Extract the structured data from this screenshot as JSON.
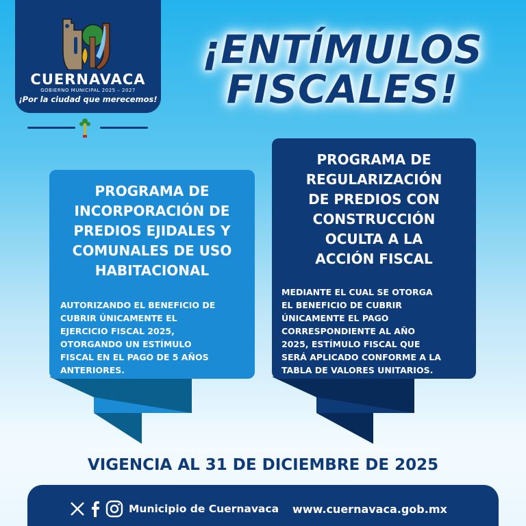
{
  "brand": {
    "name": "CUERNAVACA",
    "subtitle": "GOBIERNO MUNICIPAL 2025 – 2027",
    "slogan": "¡Por la ciudad que merecemos!"
  },
  "title": {
    "line1": "¡ENTÍMULOS",
    "line2": "FISCALES!"
  },
  "cards": [
    {
      "title": "PROGRAMA DE\nINCORPORACIÓN DE\nPREDIOS EJIDALES Y\nCOMUNALES DE USO\nHABITACIONAL",
      "body": "AUTORIZANDO EL BENEFICIO DE\nCUBRIR ÚNICAMENTE EL\nEJERCICIO FISCAL 2025,\nOTORGANDO UN ESTÍMULO\nFISCAL EN EL PAGO DE 5 AÑOS\nANTERIORES.",
      "color": "#1b8bd5"
    },
    {
      "title": "PROGRAMA DE\nREGULARIZACIÓN\nDE PREDIOS CON\nCONSTRUCCIÓN\nOCULTA A LA\nACCIÓN FISCAL",
      "body": "MEDIANTE EL CUAL SE OTORGA\nEL BENEFICIO DE CUBRIR\nÚNICAMENTE EL PAGO\nCORRESPONDIENTE AL AÑO\n2025, ESTÍMULO FISCAL QUE\nSERÁ APLICADO CONFORME A LA\nTABLA DE VALORES UNITARIOS.",
      "color": "#0e3a78"
    }
  ],
  "vigencia": "VIGENCIA AL 31 DE DICIEMBRE DE 2025",
  "footer": {
    "icons": [
      "x-icon",
      "facebook-icon",
      "instagram-icon"
    ],
    "handle": "Municipio de Cuernavaca",
    "url": "www.cuernavaca.gob.mx"
  },
  "colors": {
    "navy": "#0e3a78",
    "blue": "#1b8bd5",
    "sky": "#23b3ec"
  }
}
